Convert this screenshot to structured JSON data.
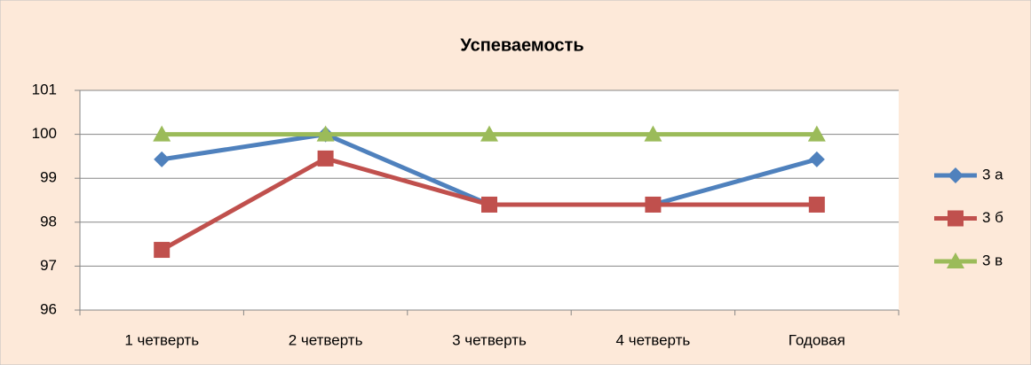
{
  "chart_data": {
    "type": "line",
    "title": "Успеваемость",
    "categories": [
      "1 четверть",
      "2 четверть",
      "3 четверть",
      "4 четверть",
      "Годовая"
    ],
    "series": [
      {
        "name": "3 а",
        "color": "#4f81bd",
        "marker": "diamond",
        "values": [
          99.43,
          100,
          98.4,
          98.4,
          99.43
        ]
      },
      {
        "name": "3 б",
        "color": "#c0504d",
        "marker": "square",
        "values": [
          97.37,
          99.45,
          98.4,
          98.4,
          98.4
        ]
      },
      {
        "name": "3 в",
        "color": "#9bbb59",
        "marker": "triangle",
        "values": [
          100,
          100,
          100,
          100,
          100
        ]
      }
    ],
    "ylim": [
      96,
      101
    ],
    "yticks": [
      96,
      97,
      98,
      99,
      100,
      101
    ],
    "grid": true,
    "legend": "right"
  }
}
